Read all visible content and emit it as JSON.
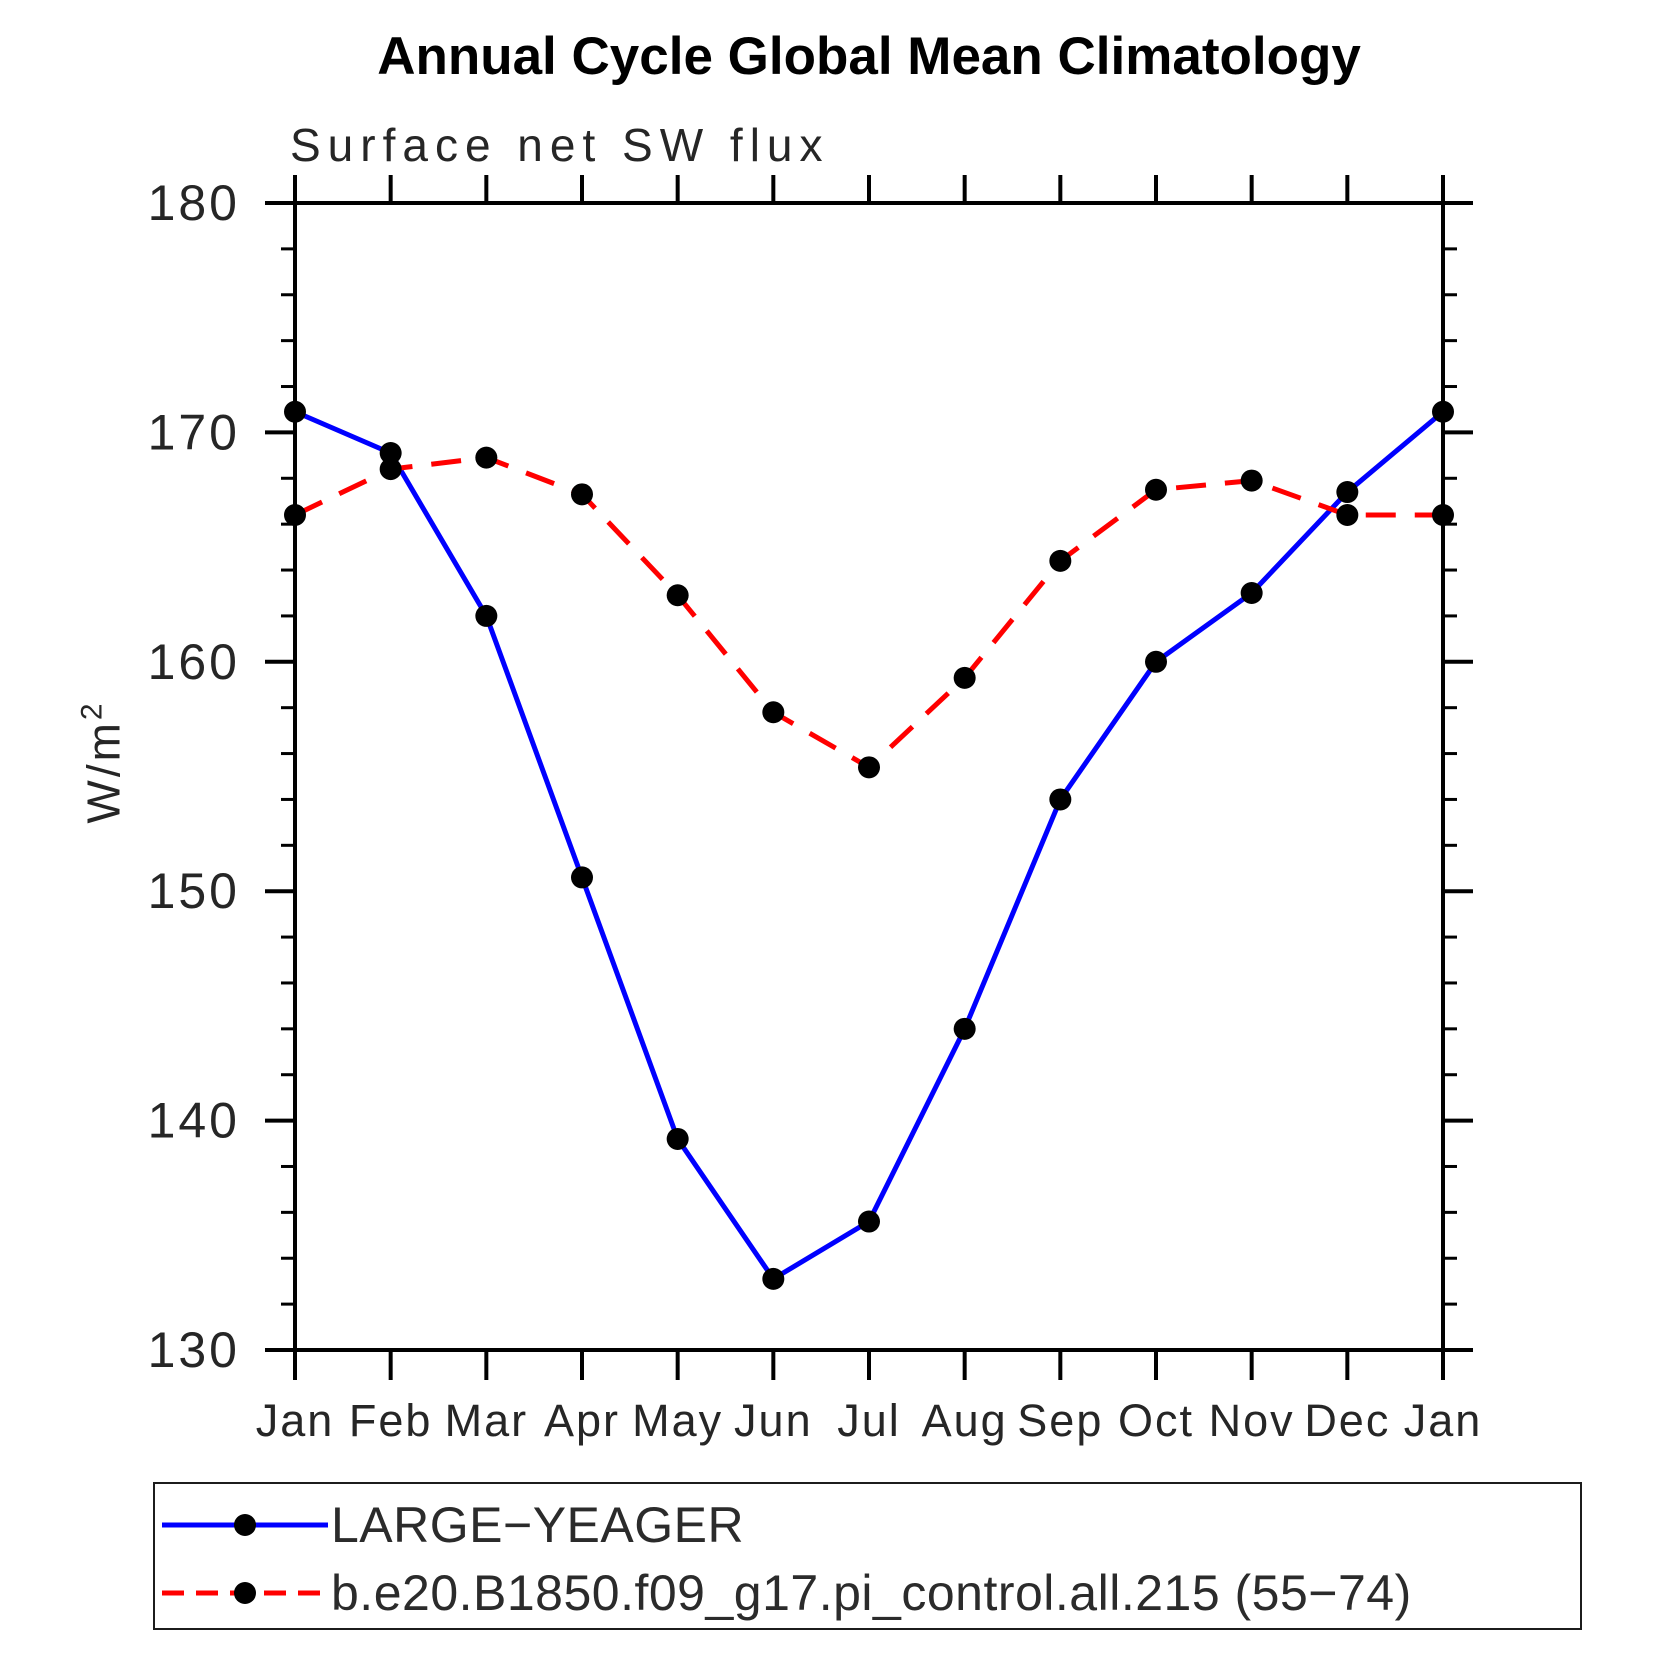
{
  "chart_data": {
    "type": "line",
    "title": "Annual Cycle Global Mean Climatology",
    "subtitle": "Surface net SW flux",
    "xlabel": "",
    "ylabel": "W/m²",
    "ylabel_parts": [
      "W/m",
      "2"
    ],
    "categories": [
      "Jan",
      "Feb",
      "Mar",
      "Apr",
      "May",
      "Jun",
      "Jul",
      "Aug",
      "Sep",
      "Oct",
      "Nov",
      "Dec",
      "Jan"
    ],
    "ylim": [
      130,
      180
    ],
    "y_major_step": 10,
    "y_minor_step": 2,
    "y_tick_labels": [
      "130",
      "140",
      "150",
      "160",
      "170",
      "180"
    ],
    "grid": false,
    "legend_position": "bottom",
    "axis_color": "#000000",
    "label_color": "#262626",
    "marker_color": "#000000",
    "series": [
      {
        "name": "LARGE−YEAGER",
        "color": "#0000ff",
        "style": "solid",
        "marker": "circle",
        "values": [
          170.9,
          169.1,
          162.0,
          150.6,
          139.2,
          133.1,
          135.6,
          144.0,
          154.0,
          160.0,
          163.0,
          167.4,
          170.9
        ]
      },
      {
        "name": "b.e20.B1850.f09_g17.pi_control.all.215 (55−74)",
        "color": "#ff0000",
        "style": "dashed",
        "marker": "circle",
        "values": [
          166.4,
          168.4,
          168.9,
          167.3,
          162.9,
          157.8,
          155.4,
          159.3,
          164.4,
          167.5,
          167.9,
          166.4,
          166.4
        ]
      }
    ]
  }
}
